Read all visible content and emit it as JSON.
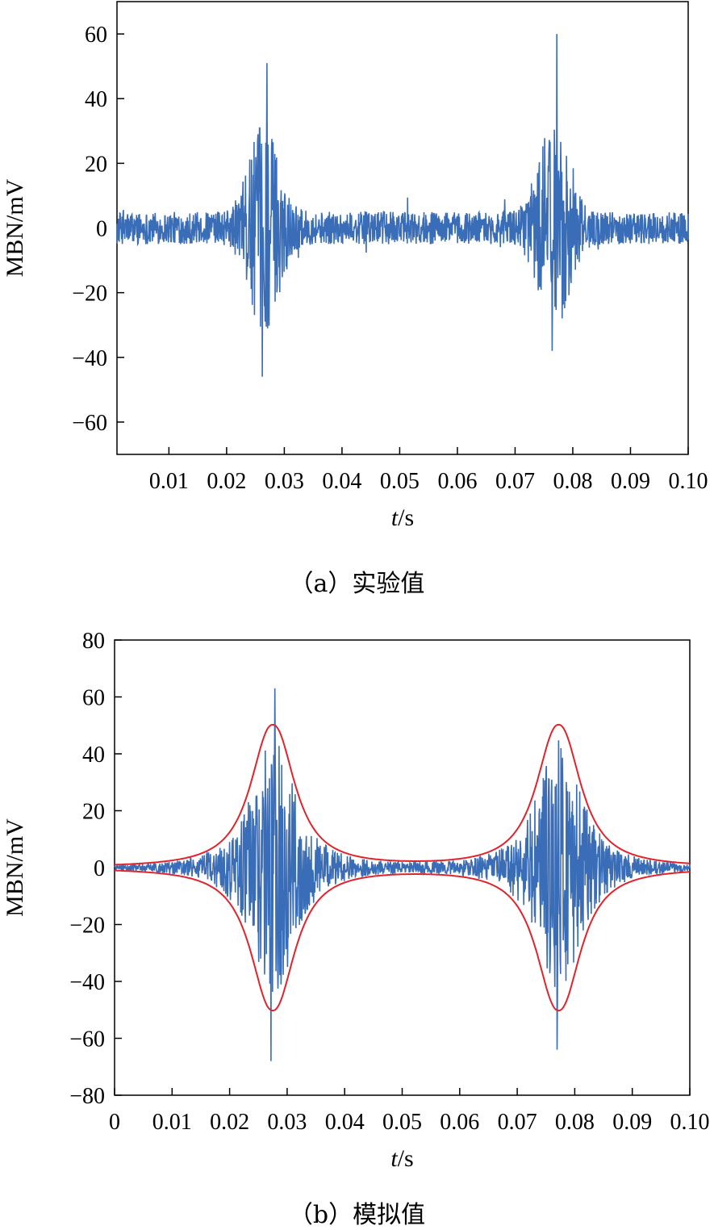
{
  "panels": [
    {
      "caption": "（a）实验值",
      "chart_data": {
        "type": "line",
        "xlabel_italic": "t",
        "xlabel_unit": "/s",
        "ylabel": "MBN/mV",
        "xlim": [
          0.001,
          0.1
        ],
        "ylim": [
          -70,
          70
        ],
        "xticks": [
          0.01,
          0.02,
          0.03,
          0.04,
          0.05,
          0.06,
          0.07,
          0.08,
          0.09,
          0.1
        ],
        "xtick_labels": [
          "0.01",
          "0.02",
          "0.03",
          "0.04",
          "0.05",
          "0.06",
          "0.07",
          "0.08",
          "0.09",
          "0.10"
        ],
        "yticks": [
          60,
          40,
          20,
          0,
          -20,
          -40,
          -60
        ],
        "ytick_labels": [
          "60",
          "40",
          "20",
          "0",
          "−20",
          "−40",
          "−60"
        ],
        "series": [
          {
            "color": "#3A6DB8",
            "bursts": [
              {
                "center": 0.0265,
                "peak_max": 51,
                "peak_min": -46
              },
              {
                "center": 0.0767,
                "peak_max": 60,
                "peak_min": -38
              }
            ],
            "noise_amplitude": 5
          }
        ]
      }
    },
    {
      "caption": "（b）模拟值",
      "chart_data": {
        "type": "line",
        "xlabel_italic": "t",
        "xlabel_unit": "/s",
        "ylabel": "MBN/mV",
        "xlim": [
          0,
          0.1
        ],
        "ylim": [
          -80,
          80
        ],
        "xticks": [
          0,
          0.01,
          0.02,
          0.03,
          0.04,
          0.05,
          0.06,
          0.07,
          0.08,
          0.09,
          0.1
        ],
        "xtick_labels": [
          "0",
          "0.01",
          "0.02",
          "0.03",
          "0.04",
          "0.05",
          "0.06",
          "0.07",
          "0.08",
          "0.09",
          "0.10"
        ],
        "yticks": [
          80,
          60,
          40,
          20,
          0,
          -20,
          -40,
          -60,
          -80
        ],
        "ytick_labels": [
          "80",
          "60",
          "40",
          "20",
          "0",
          "−20",
          "−40",
          "−60",
          "−80"
        ],
        "series": [
          {
            "color": "#3A6DB8",
            "bursts": [
              {
                "center": 0.0275,
                "peak_max": 63,
                "peak_min": -68
              },
              {
                "center": 0.0772,
                "peak_max": 42,
                "peak_min": -64
              }
            ]
          },
          {
            "color": "#E0242B",
            "envelope_peak": 50,
            "envelope_centers": [
              0.0275,
              0.0772
            ]
          }
        ]
      }
    }
  ]
}
